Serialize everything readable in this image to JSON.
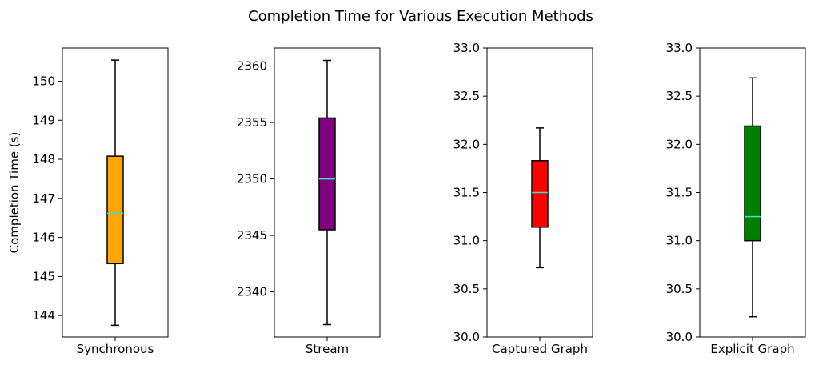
{
  "title": "Completion Time for Various Execution Methods",
  "chart_data": [
    {
      "type": "box",
      "category": "Synchronous",
      "ylabel": "Completion Time (s)",
      "ylim": [
        143.45,
        150.85
      ],
      "yticks": [
        144,
        145,
        146,
        147,
        148,
        149,
        150
      ],
      "ytick_labels": [
        "144",
        "145",
        "146",
        "147",
        "148",
        "149",
        "150"
      ],
      "stats": {
        "whislo": 143.75,
        "q1": 145.33,
        "median": 146.62,
        "q3": 148.08,
        "whishi": 150.54
      },
      "color": "#ffa500"
    },
    {
      "type": "box",
      "category": "Stream",
      "ylabel": "",
      "ylim": [
        2336.0,
        2361.6
      ],
      "yticks": [
        2340,
        2345,
        2350,
        2355,
        2360
      ],
      "ytick_labels": [
        "2340",
        "2345",
        "2350",
        "2355",
        "2360"
      ],
      "stats": {
        "whislo": 2337.1,
        "q1": 2345.5,
        "median": 2350.0,
        "q3": 2355.4,
        "whishi": 2360.5
      },
      "color": "#800080"
    },
    {
      "type": "box",
      "category": "Captured Graph",
      "ylabel": "",
      "ylim": [
        30.0,
        33.0
      ],
      "yticks": [
        30.0,
        30.5,
        31.0,
        31.5,
        32.0,
        32.5,
        33.0
      ],
      "ytick_labels": [
        "30.0",
        "30.5",
        "31.0",
        "31.5",
        "32.0",
        "32.5",
        "33.0"
      ],
      "stats": {
        "whislo": 30.72,
        "q1": 31.14,
        "median": 31.5,
        "q3": 31.83,
        "whishi": 32.17
      },
      "color": "#ff0000"
    },
    {
      "type": "box",
      "category": "Explicit Graph",
      "ylabel": "",
      "ylim": [
        30.0,
        33.0
      ],
      "yticks": [
        30.0,
        30.5,
        31.0,
        31.5,
        32.0,
        32.5,
        33.0
      ],
      "ytick_labels": [
        "30.0",
        "30.5",
        "31.0",
        "31.5",
        "32.0",
        "32.5",
        "33.0"
      ],
      "stats": {
        "whislo": 30.21,
        "q1": 31.0,
        "median": 31.25,
        "q3": 32.19,
        "whishi": 32.69
      },
      "color": "#008000"
    }
  ],
  "style": {
    "median_color": "#40e0d0",
    "edge_color": "#000000"
  }
}
